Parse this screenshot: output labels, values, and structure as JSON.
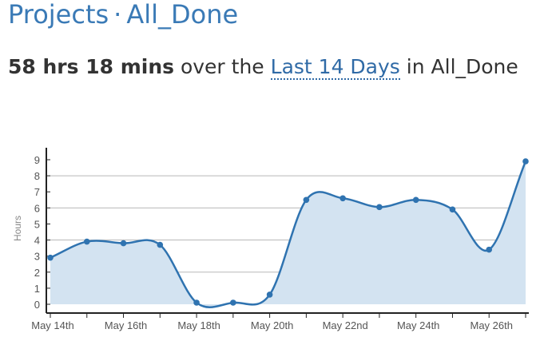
{
  "header": {
    "section": "Projects",
    "separator": "·",
    "project": "All_Done"
  },
  "summary": {
    "total": "58 hrs 18 mins",
    "over_the": "over the",
    "range": "Last 14 Days",
    "in": "in",
    "project": "All_Done"
  },
  "chart_data": {
    "type": "area",
    "ylabel": "Hours",
    "ylim": [
      0,
      9
    ],
    "yticks": [
      "0",
      "1",
      "2",
      "3",
      "4",
      "5",
      "6",
      "7",
      "8",
      "9"
    ],
    "x": [
      "May 14th",
      "May 15th",
      "May 16th",
      "May 17th",
      "May 18th",
      "May 19th",
      "May 20th",
      "May 21st",
      "May 22nd",
      "May 23rd",
      "May 24th",
      "May 25th",
      "May 26th",
      "May 27th"
    ],
    "xtick_labels": [
      "May 14th",
      "May 16th",
      "May 18th",
      "May 20th",
      "May 22nd",
      "May 24th",
      "May 26th"
    ],
    "values": [
      2.9,
      3.9,
      3.8,
      3.7,
      0.1,
      0.1,
      0.6,
      6.5,
      6.6,
      6.05,
      6.5,
      5.9,
      3.4,
      8.9
    ],
    "grid": true,
    "colors": {
      "line": "#2f73b0",
      "fill": "#d3e3f1",
      "grid": "#b8b8b8"
    }
  }
}
